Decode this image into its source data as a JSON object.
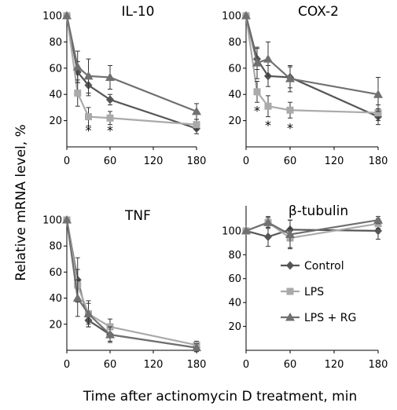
{
  "ylabel": "Relative mRNA level, %",
  "xlabel": "Time after actinomycin D treatment, min",
  "legend": [
    {
      "name": "Control",
      "color": "#555555",
      "marker": "diamond"
    },
    {
      "name": "LPS",
      "color": "#aaaaaa",
      "marker": "square"
    },
    {
      "name": "LPS + RG",
      "color": "#707070",
      "marker": "triangle"
    }
  ],
  "chart_data": [
    {
      "type": "line",
      "title": "IL-10",
      "x": [
        0,
        15,
        30,
        60,
        180
      ],
      "xticks": [
        "0",
        "60",
        "120",
        "180"
      ],
      "yticks": [
        "20",
        "40",
        "60",
        "80",
        "100"
      ],
      "xlim": [
        0,
        180
      ],
      "ylim": [
        0,
        100
      ],
      "series": [
        {
          "name": "Control",
          "values": [
            100,
            57,
            47,
            36,
            14
          ],
          "errors": [
            0,
            8,
            8,
            4,
            4
          ]
        },
        {
          "name": "LPS",
          "values": [
            100,
            41,
            23,
            22,
            17
          ],
          "errors": [
            0,
            10,
            7,
            5,
            4
          ]
        },
        {
          "name": "LPS + RG",
          "values": [
            100,
            61,
            54,
            53,
            27
          ],
          "errors": [
            0,
            12,
            13,
            9,
            6
          ]
        }
      ],
      "significance": [
        {
          "x": 30,
          "y": 14,
          "label": "*"
        },
        {
          "x": 60,
          "y": 14,
          "label": "*"
        }
      ]
    },
    {
      "type": "line",
      "title": "COX-2",
      "x": [
        0,
        15,
        30,
        60,
        180
      ],
      "xticks": [
        "0",
        "60",
        "120",
        "180"
      ],
      "yticks": [
        "20",
        "40",
        "60",
        "80",
        "100"
      ],
      "xlim": [
        0,
        180
      ],
      "ylim": [
        0,
        100
      ],
      "series": [
        {
          "name": "Control",
          "values": [
            100,
            67,
            54,
            53,
            23
          ],
          "errors": [
            0,
            8,
            8,
            8,
            6
          ]
        },
        {
          "name": "LPS",
          "values": [
            100,
            42,
            31,
            28,
            26
          ],
          "errors": [
            0,
            8,
            8,
            6,
            6
          ]
        },
        {
          "name": "LPS + RG",
          "values": [
            100,
            64,
            67,
            52,
            40
          ],
          "errors": [
            0,
            12,
            13,
            10,
            13
          ]
        }
      ],
      "significance": [
        {
          "x": 15,
          "y": 29,
          "label": "*"
        },
        {
          "x": 30,
          "y": 18,
          "label": "*"
        },
        {
          "x": 60,
          "y": 16,
          "label": "*"
        }
      ]
    },
    {
      "type": "line",
      "title": "TNF",
      "x": [
        0,
        15,
        30,
        60,
        180
      ],
      "xticks": [
        "0",
        "60",
        "120",
        "180"
      ],
      "yticks": [
        "20",
        "40",
        "60",
        "80",
        "100"
      ],
      "xlim": [
        0,
        180
      ],
      "ylim": [
        0,
        100
      ],
      "series": [
        {
          "name": "Control",
          "values": [
            100,
            54,
            23,
            12,
            2
          ],
          "errors": [
            0,
            17,
            5,
            5,
            3
          ]
        },
        {
          "name": "LPS",
          "values": [
            100,
            50,
            28,
            18,
            4
          ],
          "errors": [
            0,
            12,
            8,
            6,
            3
          ]
        },
        {
          "name": "LPS + RG",
          "values": [
            100,
            40,
            28,
            12,
            2
          ],
          "errors": [
            0,
            14,
            10,
            6,
            3
          ]
        }
      ],
      "significance": []
    },
    {
      "type": "line",
      "title": "β-tubulin",
      "x": [
        0,
        30,
        60,
        180
      ],
      "xticks": [
        "0",
        "60",
        "120",
        "180"
      ],
      "yticks": [
        "20",
        "40",
        "60",
        "80",
        "100"
      ],
      "xlim": [
        0,
        180
      ],
      "ylim": [
        0,
        112
      ],
      "series": [
        {
          "name": "Control",
          "values": [
            100,
            95,
            101,
            100
          ],
          "errors": [
            0,
            8,
            8,
            7
          ]
        },
        {
          "name": "LPS",
          "values": [
            100,
            107,
            94,
            106
          ],
          "errors": [
            0,
            5,
            8,
            4
          ]
        },
        {
          "name": "LPS + RG",
          "values": [
            100,
            107,
            97,
            109
          ],
          "errors": [
            0,
            4,
            12,
            3
          ]
        }
      ],
      "significance": []
    }
  ]
}
